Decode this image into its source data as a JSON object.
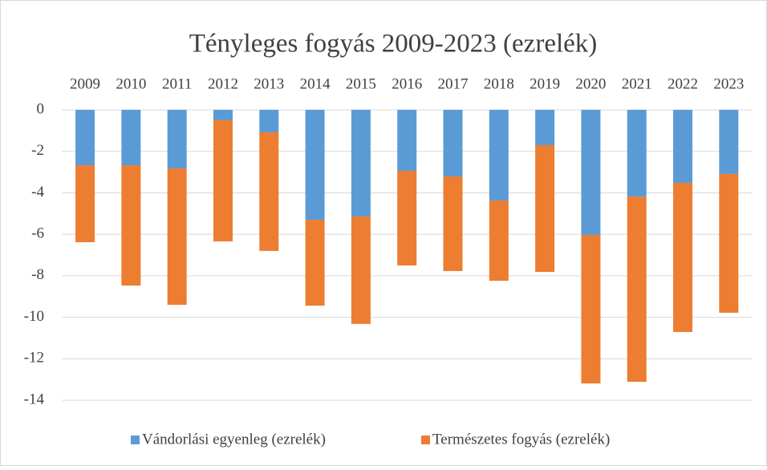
{
  "chart_data": {
    "type": "stacked_bar",
    "title": "Tényleges fogyás 2009-2023 (ezrelék)",
    "categories": [
      "2009",
      "2010",
      "2011",
      "2012",
      "2013",
      "2014",
      "2015",
      "2016",
      "2017",
      "2018",
      "2019",
      "2020",
      "2021",
      "2022",
      "2023"
    ],
    "series": [
      {
        "name": "Vándorlási egyenleg (ezrelék)",
        "color": "#5b9bd5",
        "values": [
          -2.67,
          -2.67,
          -2.82,
          -0.5,
          -1.08,
          -5.3,
          -5.14,
          -2.94,
          -3.21,
          -4.37,
          -1.7,
          -6.03,
          -4.18,
          -3.52,
          -3.09
        ]
      },
      {
        "name": "Természetes fogyás (ezrelék)",
        "color": "#ed7d31",
        "values": [
          -3.71,
          -5.8,
          -6.58,
          -5.84,
          -5.72,
          -4.14,
          -5.18,
          -4.56,
          -4.56,
          -3.87,
          -6.11,
          -7.16,
          -8.93,
          -7.19,
          -6.69
        ]
      }
    ],
    "ylim": [
      -15,
      0
    ],
    "yticks": [
      0,
      -2,
      -4,
      -6,
      -8,
      -10,
      -12,
      -14
    ],
    "grid": true,
    "legend": "bottom"
  }
}
